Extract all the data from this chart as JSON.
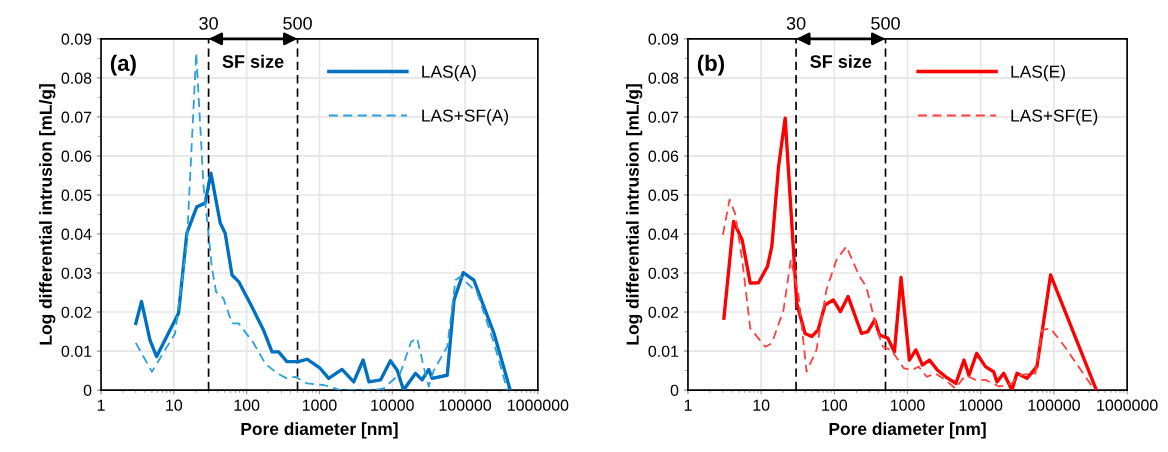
{
  "chart_data": [
    {
      "type": "line",
      "xlabel": "Pore diameter [nm]",
      "ylabel": "Log differential intrusion [mL/g]",
      "annotations": [
        "(a)",
        "SF size"
      ],
      "log": "x",
      "grid": true,
      "legend": "top right",
      "xlim": [
        1,
        1000000
      ],
      "xticks": [
        1,
        10,
        100,
        1000,
        10000,
        100000,
        1000000
      ],
      "ylim": [
        0,
        0.09
      ],
      "yticks": [
        0,
        0.01,
        0.02,
        0.03,
        0.04,
        0.05,
        0.06,
        0.07,
        0.08,
        0.09
      ],
      "ref_lines": [
        {
          "axis": "x",
          "value": 30,
          "label": "30",
          "color": "#000000",
          "line_style": "dashed"
        },
        {
          "axis": "x",
          "value": 500,
          "label": "500",
          "color": "#000000",
          "line_style": "dashed"
        }
      ],
      "series": [
        {
          "name": "LAS(A)",
          "color": "#0070c0",
          "line_style": "solid",
          "x": [
            3,
            3.6,
            4.7,
            5.8,
            11.6,
            15.1,
            20.7,
            26.9,
            32.3,
            43.4,
            50.7,
            63,
            77.6,
            112,
            170,
            223,
            275,
            357,
            516,
            675,
            1020,
            1340,
            2040,
            2960,
            3980,
            4780,
            6900,
            9440,
            11700,
            14300,
            20900,
            25700,
            31700,
            35300,
            56900,
            70600,
            94500,
            132000,
            250000,
            417000
          ],
          "values": [
            0.0171,
            0.0227,
            0.0128,
            0.0086,
            0.0197,
            0.0402,
            0.047,
            0.0479,
            0.0556,
            0.0428,
            0.0402,
            0.0295,
            0.0278,
            0.0222,
            0.0154,
            0.0098,
            0.0098,
            0.0073,
            0.0073,
            0.0079,
            0.0056,
            0.003,
            0.0053,
            0.0021,
            0.0077,
            0.0021,
            0.0026,
            0.0075,
            0.0051,
            0,
            0.0043,
            0.0026,
            0.0053,
            0.003,
            0.0038,
            0.0231,
            0.0301,
            0.0282,
            0.0145,
            0
          ]
        },
        {
          "name": "LAS+SF(A)",
          "color": "#2aa0dc",
          "line_style": "dashed",
          "x": [
            3,
            5,
            10.4,
            15.1,
            20.3,
            25.6,
            33.2,
            38,
            48,
            63,
            77.6,
            125,
            180,
            262,
            357,
            465,
            675,
            1150,
            1950,
            5500,
            7600,
            12900,
            18200,
            22000,
            27000,
            31700,
            37300,
            56900,
            74000,
            87000,
            148000,
            250000,
            380000
          ],
          "values": [
            0.0121,
            0.0047,
            0.0145,
            0.0376,
            0.0864,
            0.0522,
            0.0317,
            0.0252,
            0.0235,
            0.0171,
            0.0171,
            0.012,
            0.0068,
            0.0043,
            0.003,
            0.0034,
            0.0017,
            0.0013,
            0,
            0,
            0.0004,
            0.0043,
            0.0124,
            0.0133,
            0.006,
            0.0009,
            0.0051,
            0.0111,
            0.0282,
            0.0291,
            0.0248,
            0.012,
            0
          ]
        }
      ]
    },
    {
      "type": "line",
      "xlabel": "Pore diameter [nm]",
      "ylabel": "Log differential intrusion [mL/g]",
      "annotations": [
        "(b)",
        "SF size"
      ],
      "log": "x",
      "grid": true,
      "legend": "top right",
      "xlim": [
        1,
        1000000
      ],
      "xticks": [
        1,
        10,
        100,
        1000,
        10000,
        100000,
        1000000
      ],
      "ylim": [
        0,
        0.09
      ],
      "yticks": [
        0,
        0.01,
        0.02,
        0.03,
        0.04,
        0.05,
        0.06,
        0.07,
        0.08,
        0.09
      ],
      "ref_lines": [
        {
          "axis": "x",
          "value": 30,
          "label": "30",
          "color": "#000000",
          "line_style": "dashed"
        },
        {
          "axis": "x",
          "value": 500,
          "label": "500",
          "color": "#000000",
          "line_style": "dashed"
        }
      ],
      "series": [
        {
          "name": "LAS(E)",
          "color": "#ff0000",
          "line_style": "solid",
          "x": [
            3.1,
            4.2,
            5.5,
            7.1,
            9.2,
            12.2,
            14,
            17.3,
            21.3,
            30.7,
            39.8,
            49,
            60,
            74.5,
            97,
            121,
            154,
            235,
            287,
            356,
            415,
            537,
            662,
            815,
            1060,
            1300,
            1600,
            1990,
            2570,
            3330,
            4570,
            5900,
            6900,
            8800,
            11600,
            15000,
            16700,
            20600,
            26700,
            31300,
            42700,
            58500,
            90000,
            380000
          ],
          "values": [
            0.0184,
            0.0432,
            0.0385,
            0.0274,
            0.0275,
            0.0317,
            0.0368,
            0.0573,
            0.0697,
            0.0222,
            0.0145,
            0.0137,
            0.0154,
            0.0218,
            0.0231,
            0.0201,
            0.024,
            0.0145,
            0.015,
            0.018,
            0.0141,
            0.0133,
            0.0098,
            0.0289,
            0.0077,
            0.0103,
            0.0064,
            0.0077,
            0.0051,
            0.0034,
            0.0017,
            0.0077,
            0.0038,
            0.0094,
            0.006,
            0.0047,
            0.0021,
            0.0043,
            0,
            0.0043,
            0.003,
            0.006,
            0.0295,
            0
          ]
        },
        {
          "name": "LAS+SF(E)",
          "color": "#ff4040",
          "line_style": "dashed",
          "x": [
            3,
            3.7,
            4.4,
            5.5,
            7.1,
            11.4,
            14,
            20.2,
            25.4,
            32.2,
            41.7,
            57,
            78,
            107,
            146,
            221,
            273,
            373,
            460,
            594,
            692,
            890,
            1150,
            1420,
            1830,
            2380,
            3300,
            4500,
            6200,
            8500,
            11700,
            17800,
            26700,
            33000,
            56000,
            69000,
            90000,
            141000,
            360000
          ],
          "values": [
            0.0398,
            0.0488,
            0.0453,
            0.0334,
            0.0158,
            0.0111,
            0.012,
            0.0205,
            0.0334,
            0.0248,
            0.0047,
            0.0103,
            0.0257,
            0.0334,
            0.0368,
            0.0291,
            0.0265,
            0.0163,
            0.0111,
            0.0103,
            0.0086,
            0.0056,
            0.0051,
            0.006,
            0.0034,
            0.0043,
            0.0026,
            0.0004,
            0.0038,
            0.0026,
            0.0026,
            0.0009,
            0.0017,
            0.0038,
            0.0043,
            0.0154,
            0.0158,
            0.0111,
            0
          ]
        }
      ]
    }
  ]
}
